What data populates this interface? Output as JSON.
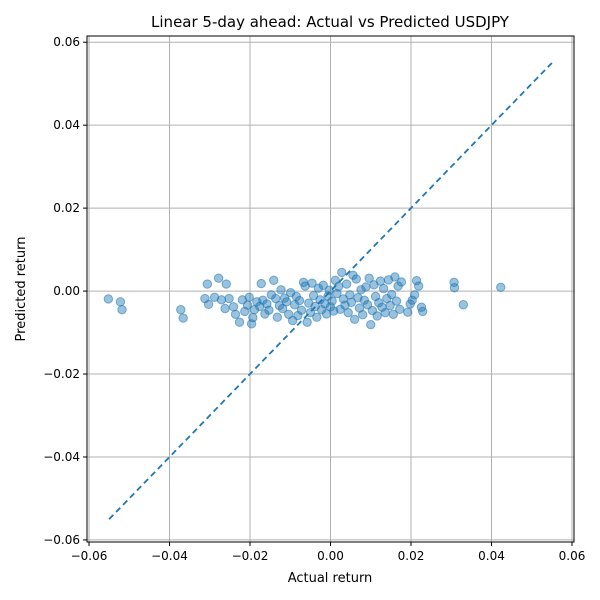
{
  "chart_data": {
    "type": "scatter",
    "title": "Linear 5-day ahead: Actual vs Predicted USDJPY",
    "xlabel": "Actual return",
    "ylabel": "Predicted return",
    "xlim": [
      -0.0605,
      0.0605
    ],
    "ylim": [
      -0.0605,
      0.0615
    ],
    "xticks": [
      -0.06,
      -0.04,
      -0.02,
      0.0,
      0.02,
      0.04,
      0.06
    ],
    "xtick_labels": [
      "−0.06",
      "−0.04",
      "−0.02",
      "0.00",
      "0.02",
      "0.04",
      "0.06"
    ],
    "yticks": [
      -0.06,
      -0.04,
      -0.02,
      0.0,
      0.02,
      0.04,
      0.06
    ],
    "ytick_labels": [
      "−0.06",
      "−0.04",
      "−0.02",
      "0.00",
      "0.02",
      "0.04",
      "0.06"
    ],
    "grid": true,
    "colors": {
      "points": "#1f77b4",
      "reference_line": "#1f77b4",
      "grid": "#b0b0b0"
    },
    "reference_line": {
      "style": "dashed",
      "x": [
        -0.055,
        0.055
      ],
      "y": [
        -0.055,
        0.055
      ]
    },
    "series": [
      {
        "points": [
          [
            -0.0552,
            -0.0019
          ],
          [
            -0.0522,
            -0.0026
          ],
          [
            -0.0518,
            -0.0045
          ],
          [
            -0.0372,
            -0.0045
          ],
          [
            -0.0366,
            -0.0065
          ],
          [
            -0.0312,
            -0.0018
          ],
          [
            -0.0306,
            0.0017
          ],
          [
            -0.0303,
            -0.0032
          ],
          [
            -0.0288,
            -0.0015
          ],
          [
            -0.0278,
            0.0031
          ],
          [
            -0.0271,
            -0.0021
          ],
          [
            -0.0262,
            -0.0042
          ],
          [
            -0.0259,
            0.0017
          ],
          [
            -0.0252,
            -0.0018
          ],
          [
            -0.0241,
            -0.0038
          ],
          [
            -0.0236,
            -0.0056
          ],
          [
            -0.0226,
            -0.0075
          ],
          [
            -0.0219,
            -0.0021
          ],
          [
            -0.0213,
            -0.0049
          ],
          [
            -0.0206,
            -0.0034
          ],
          [
            -0.0202,
            -0.0015
          ],
          [
            -0.0196,
            -0.0079
          ],
          [
            -0.0193,
            -0.0064
          ],
          [
            -0.0189,
            -0.0045
          ],
          [
            -0.0183,
            -0.0026
          ],
          [
            -0.0176,
            -0.0037
          ],
          [
            -0.0172,
            0.0018
          ],
          [
            -0.0168,
            -0.0022
          ],
          [
            -0.0163,
            -0.0055
          ],
          [
            -0.0158,
            -0.0031
          ],
          [
            -0.0153,
            -0.0046
          ],
          [
            -0.0147,
            -0.0009
          ],
          [
            -0.0141,
            0.0026
          ],
          [
            -0.0136,
            -0.0018
          ],
          [
            -0.0132,
            -0.0063
          ],
          [
            -0.0127,
            -0.0035
          ],
          [
            -0.0123,
            0.0003
          ],
          [
            -0.0119,
            -0.0042
          ],
          [
            -0.0114,
            -0.0017
          ],
          [
            -0.0109,
            -0.0026
          ],
          [
            -0.0104,
            -0.0056
          ],
          [
            -0.0099,
            -0.0004
          ],
          [
            -0.0094,
            -0.0071
          ],
          [
            -0.0089,
            -0.0033
          ],
          [
            -0.0085,
            -0.0013
          ],
          [
            -0.0081,
            -0.0059
          ],
          [
            -0.0077,
            -0.0023
          ],
          [
            -0.0072,
            -0.0046
          ],
          [
            -0.0067,
            0.0021
          ],
          [
            -0.0063,
            0.0012
          ],
          [
            -0.0058,
            -0.0075
          ],
          [
            -0.0054,
            -0.0029
          ],
          [
            -0.005,
            -0.0052
          ],
          [
            -0.0046,
            0.0019
          ],
          [
            -0.0042,
            -0.0011
          ],
          [
            -0.0038,
            -0.0037
          ],
          [
            -0.0034,
            -0.0063
          ],
          [
            -0.003,
            0.0007
          ],
          [
            -0.0026,
            -0.0021
          ],
          [
            -0.0022,
            -0.0045
          ],
          [
            -0.0018,
            0.0014
          ],
          [
            -0.0014,
            -0.0031
          ],
          [
            -0.001,
            -0.0055
          ],
          [
            -0.0006,
            -0.0012
          ],
          [
            -0.0003,
            0.0002
          ],
          [
            0.0,
            -0.0038
          ],
          [
            0.0004,
            -0.0024
          ],
          [
            0.0008,
            -0.0048
          ],
          [
            0.0012,
            0.0026
          ],
          [
            0.0016,
            -0.0006
          ],
          [
            0.002,
            0.0011
          ],
          [
            0.0024,
            -0.0044
          ],
          [
            0.0028,
            0.0045
          ],
          [
            0.0032,
            -0.0019
          ],
          [
            0.0036,
            -0.0034
          ],
          [
            0.004,
            0.0017
          ],
          [
            0.0044,
            -0.0052
          ],
          [
            0.0048,
            -0.0009
          ],
          [
            0.0052,
            -0.0027
          ],
          [
            0.0056,
            0.0038
          ],
          [
            0.006,
            -0.0068
          ],
          [
            0.0064,
            0.0029
          ],
          [
            0.0068,
            -0.0016
          ],
          [
            0.0072,
            -0.0041
          ],
          [
            0.0076,
            0.0003
          ],
          [
            0.008,
            -0.0057
          ],
          [
            0.0084,
            -0.0022
          ],
          [
            0.0088,
            0.001
          ],
          [
            0.0092,
            -0.0033
          ],
          [
            0.0096,
            0.0031
          ],
          [
            0.01,
            -0.0081
          ],
          [
            0.0104,
            -0.0047
          ],
          [
            0.0108,
            0.0015
          ],
          [
            0.0112,
            -0.0013
          ],
          [
            0.0116,
            -0.006
          ],
          [
            0.012,
            -0.0028
          ],
          [
            0.0124,
            0.0024
          ],
          [
            0.0128,
            -0.0039
          ],
          [
            0.0132,
            0.0006
          ],
          [
            0.0136,
            -0.0052
          ],
          [
            0.014,
            -0.0018
          ],
          [
            0.0144,
            0.0027
          ],
          [
            0.0148,
            -0.0035
          ],
          [
            0.0152,
            -0.0008
          ],
          [
            0.0156,
            -0.0056
          ],
          [
            0.016,
            0.0034
          ],
          [
            0.0164,
            -0.0024
          ],
          [
            0.0168,
            0.0012
          ],
          [
            0.0172,
            -0.0044
          ],
          [
            0.0176,
            0.0022
          ],
          [
            0.0192,
            -0.0051
          ],
          [
            0.0198,
            -0.0031
          ],
          [
            0.0203,
            -0.0022
          ],
          [
            0.0209,
            -0.0009
          ],
          [
            0.0214,
            0.0025
          ],
          [
            0.0219,
            0.0012
          ],
          [
            0.0226,
            -0.0039
          ],
          [
            0.0229,
            -0.0049
          ],
          [
            0.0307,
            0.0021
          ],
          [
            0.0308,
            0.0008
          ],
          [
            0.033,
            -0.0033
          ],
          [
            0.0423,
            0.0009
          ]
        ]
      }
    ]
  }
}
